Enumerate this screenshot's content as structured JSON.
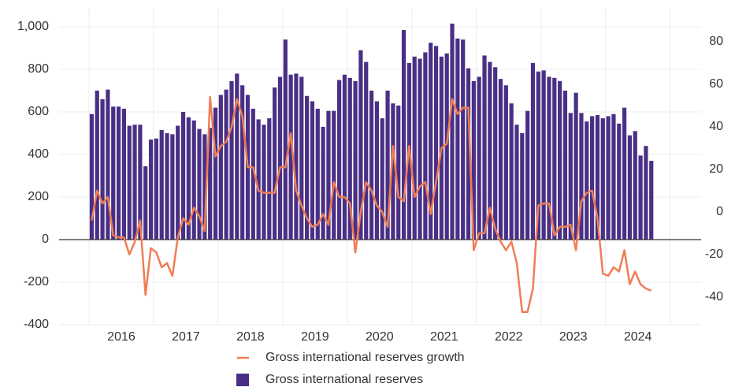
{
  "chart_data": {
    "type": "bar",
    "categories": [
      "2016",
      null,
      null,
      null,
      null,
      null,
      null,
      null,
      null,
      null,
      null,
      null,
      "2017",
      null,
      null,
      null,
      null,
      null,
      null,
      null,
      null,
      null,
      null,
      null,
      "2018",
      null,
      null,
      null,
      null,
      null,
      null,
      null,
      null,
      null,
      null,
      null,
      "2019",
      null,
      null,
      null,
      null,
      null,
      null,
      null,
      null,
      null,
      null,
      null,
      "2020",
      null,
      null,
      null,
      null,
      null,
      null,
      null,
      null,
      null,
      null,
      null,
      "2021",
      null,
      null,
      null,
      null,
      null,
      null,
      null,
      null,
      null,
      null,
      null,
      "2022",
      null,
      null,
      null,
      null,
      null,
      null,
      null,
      null,
      null,
      null,
      null,
      "2023",
      null,
      null,
      null,
      null,
      null,
      null,
      null,
      null,
      null,
      null,
      null,
      "2024",
      null,
      null,
      null,
      null,
      null,
      null,
      null,
      null
    ],
    "series": [
      {
        "name": "Gross international reserves growth",
        "type": "line",
        "axis": "y2",
        "color": "#f07d55",
        "values": [
          -4,
          10,
          4,
          7,
          -11,
          -12,
          -12,
          -20,
          -14,
          -4,
          -39,
          -17,
          -19,
          -26,
          -24,
          -30,
          -12,
          -3,
          -6,
          2,
          -2,
          -9,
          54,
          26,
          31,
          33,
          40,
          53,
          45,
          21,
          21,
          10,
          9,
          9,
          9,
          21,
          21,
          37,
          10,
          3,
          -3,
          -7,
          -6,
          -1,
          -6,
          14,
          7,
          7,
          4,
          -19,
          0,
          14,
          10,
          3,
          0,
          -7,
          31,
          7,
          5,
          31,
          7,
          12,
          14,
          -1,
          14,
          30,
          32,
          53,
          46,
          49,
          49,
          -18,
          -10,
          -10,
          2,
          -8,
          -14,
          -18,
          -14,
          -24,
          -47,
          -47,
          -36,
          3,
          4,
          4,
          -11,
          -7,
          -7,
          -6,
          -18,
          5,
          9,
          10,
          -3,
          -29,
          -30,
          -26,
          -28,
          -18,
          -34,
          -28,
          -34,
          -36,
          -37
        ]
      },
      {
        "name": "Gross international reserves",
        "type": "bar",
        "color": "#4a2f86",
        "values": [
          590,
          700,
          660,
          705,
          625,
          625,
          615,
          535,
          540,
          540,
          345,
          470,
          475,
          515,
          500,
          495,
          535,
          600,
          575,
          560,
          520,
          495,
          525,
          620,
          680,
          705,
          745,
          780,
          725,
          680,
          615,
          565,
          540,
          570,
          715,
          765,
          940,
          775,
          780,
          765,
          675,
          650,
          615,
          530,
          605,
          605,
          750,
          775,
          760,
          745,
          890,
          835,
          700,
          650,
          570,
          700,
          640,
          630,
          985,
          830,
          860,
          850,
          880,
          925,
          910,
          860,
          875,
          1015,
          945,
          940,
          805,
          745,
          765,
          865,
          835,
          810,
          755,
          725,
          640,
          540,
          500,
          605,
          830,
          790,
          795,
          765,
          760,
          745,
          700,
          595,
          690,
          595,
          555,
          580,
          585,
          570,
          580,
          590,
          545,
          620,
          490,
          510,
          395,
          440,
          370
        ]
      }
    ],
    "ylim": [
      -400,
      1000
    ],
    "yticks": [
      -400,
      -200,
      0,
      200,
      400,
      600,
      800,
      {
        "value": 1000,
        "label": "1,000"
      }
    ],
    "y2lim": [
      -53,
      87
    ],
    "y2ticks": [
      -40,
      -20,
      0,
      20,
      40,
      60,
      80
    ],
    "grid": true
  }
}
